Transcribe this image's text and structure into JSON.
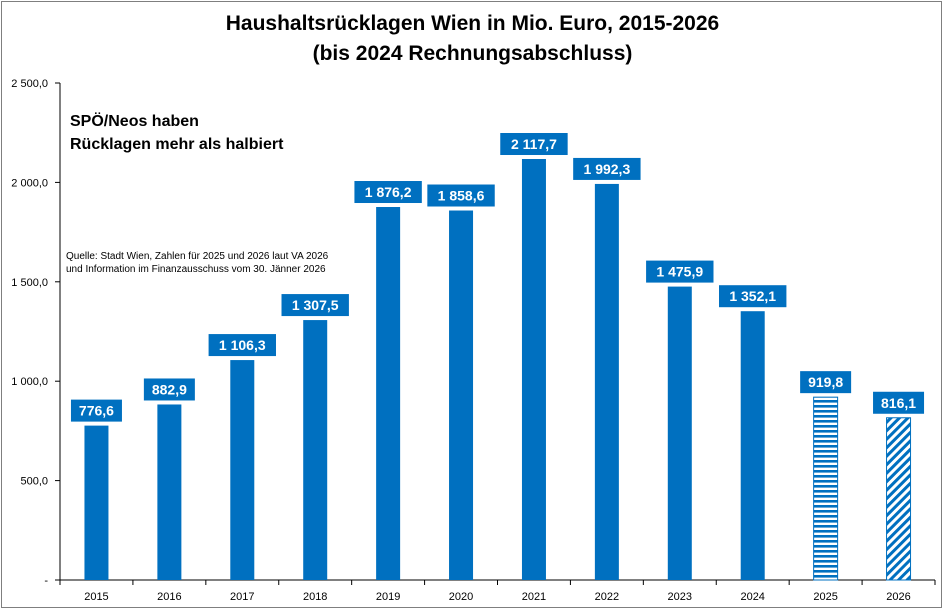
{
  "chart_data": {
    "type": "bar",
    "title": "Haushaltsrücklagen Wien in Mio. Euro, 2015-2026",
    "subtitle": "(bis 2024 Rechnungsabschluss)",
    "annotation": [
      "SPÖ/Neos haben",
      "Rücklagen mehr als halbiert"
    ],
    "source": [
      "Quelle: Stadt Wien, Zahlen für 2025 und 2026 laut VA 2026",
      "und Information im Finanzausschuss vom 30. Jänner 2026"
    ],
    "categories": [
      "2015",
      "2016",
      "2017",
      "2018",
      "2019",
      "2020",
      "2021",
      "2022",
      "2023",
      "2024",
      "2025",
      "2026"
    ],
    "values": [
      776.6,
      882.9,
      1106.3,
      1307.5,
      1876.2,
      1858.6,
      2117.7,
      1992.3,
      1475.9,
      1352.1,
      919.8,
      816.1
    ],
    "value_labels": [
      "776,6",
      "882,9",
      "1 106,3",
      "1 307,5",
      "1 876,2",
      "1 858,6",
      "2 117,7",
      "1 992,3",
      "1 475,9",
      "1 352,1",
      "919,8",
      "816,1"
    ],
    "bar_styles": [
      "solid",
      "solid",
      "solid",
      "solid",
      "solid",
      "solid",
      "solid",
      "solid",
      "solid",
      "solid",
      "horizontal-stripes",
      "diagonal-stripes"
    ],
    "ylim": [
      0,
      2500
    ],
    "yticks": [
      0,
      500,
      1000,
      1500,
      2000,
      2500
    ],
    "ytick_labels": [
      "-",
      "500,0",
      "1 000,0",
      "1 500,0",
      "2 000,0",
      "2 500,0"
    ],
    "grid": false,
    "legend": "none",
    "bar_color": "#0070c0",
    "label_color": "#0070c0"
  }
}
